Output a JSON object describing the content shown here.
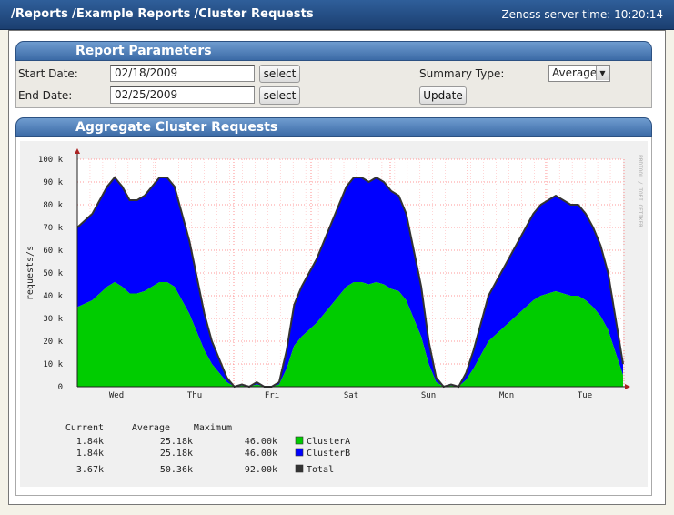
{
  "breadcrumb": [
    "/Reports",
    "/Example Reports",
    "/Cluster Requests"
  ],
  "server_time": "Zenoss server time: 10:20:14",
  "params": {
    "title": "Report Parameters",
    "start_label": "Start Date:",
    "start_value": "02/18/2009",
    "end_label": "End Date:",
    "end_value": "02/25/2009",
    "select_label": "select",
    "summary_label": "Summary Type:",
    "summary_value": "Average",
    "update_label": "Update"
  },
  "graph": {
    "title": "Aggregate Cluster Requests",
    "side_text": "RRDTOOL / TOBI OETIKER",
    "stats_headers": [
      "Current",
      "Average",
      "Maximum"
    ]
  },
  "chart_data": {
    "type": "area",
    "ylabel": "requests/s",
    "ylim": [
      0,
      100000
    ],
    "yticks": [
      "0",
      "10 k",
      "20 k",
      "30 k",
      "40 k",
      "50 k",
      "60 k",
      "70 k",
      "80 k",
      "90 k",
      "100 k"
    ],
    "xticks": [
      "Wed",
      "Thu",
      "Fri",
      "Sat",
      "Sun",
      "Mon",
      "Tue"
    ],
    "stacked": true,
    "series": [
      {
        "name": "ClusterA",
        "color": "#00cc00",
        "current": "1.84k",
        "average": "25.18k",
        "maximum": "46.00k",
        "values": [
          35000,
          38000,
          41000,
          44000,
          46000,
          44000,
          41000,
          41000,
          42000,
          44000,
          46000,
          46000,
          44000,
          38000,
          32000,
          24000,
          16000,
          10000,
          6000,
          2000,
          0,
          500,
          0,
          1000,
          0,
          0,
          1000,
          8000,
          18000,
          22000,
          25000,
          28000,
          32000,
          36000,
          40000,
          44000,
          46000,
          46000,
          45000,
          46000,
          45000,
          43000,
          42000,
          38000,
          30000,
          22000,
          10000,
          2000,
          0,
          500,
          0,
          3000,
          8000,
          14000,
          20000,
          23000,
          26000,
          29000,
          32000,
          35000,
          38000,
          40000,
          41000,
          42000,
          41000,
          40000,
          40000,
          38000,
          35000,
          31000,
          25000,
          15000,
          5000
        ],
        "values_x": [
          0,
          2,
          3,
          4,
          5,
          6,
          7,
          8,
          9,
          10,
          11,
          12,
          13,
          14,
          15,
          16,
          17,
          18,
          19,
          20,
          21,
          22,
          23,
          24,
          25,
          26,
          27,
          28,
          29,
          30,
          31,
          32,
          33,
          34,
          35,
          36,
          37,
          38,
          39,
          40,
          41,
          42,
          43,
          44,
          45,
          46,
          47,
          48,
          49,
          50,
          51,
          52,
          53,
          54,
          55,
          56,
          57,
          58,
          59,
          60,
          61,
          62,
          63,
          64,
          65,
          66,
          67,
          68,
          69,
          70,
          71,
          72,
          73
        ]
      },
      {
        "name": "ClusterB",
        "color": "#0000ff",
        "current": "1.84k",
        "average": "25.18k",
        "maximum": "46.00k",
        "values": [
          35000,
          38000,
          41000,
          44000,
          46000,
          44000,
          41000,
          41000,
          42000,
          44000,
          46000,
          46000,
          44000,
          38000,
          32000,
          24000,
          16000,
          10000,
          6000,
          2000,
          0,
          500,
          0,
          1000,
          0,
          0,
          1000,
          8000,
          18000,
          22000,
          25000,
          28000,
          32000,
          36000,
          40000,
          44000,
          46000,
          46000,
          45000,
          46000,
          45000,
          43000,
          42000,
          38000,
          30000,
          22000,
          10000,
          2000,
          0,
          500,
          0,
          3000,
          8000,
          14000,
          20000,
          23000,
          26000,
          29000,
          32000,
          35000,
          38000,
          40000,
          41000,
          42000,
          41000,
          40000,
          40000,
          38000,
          35000,
          31000,
          25000,
          15000,
          5000
        ]
      },
      {
        "name": "Total",
        "color": "#333333",
        "current": "3.67k",
        "average": "50.36k",
        "maximum": "92.00k"
      }
    ]
  }
}
